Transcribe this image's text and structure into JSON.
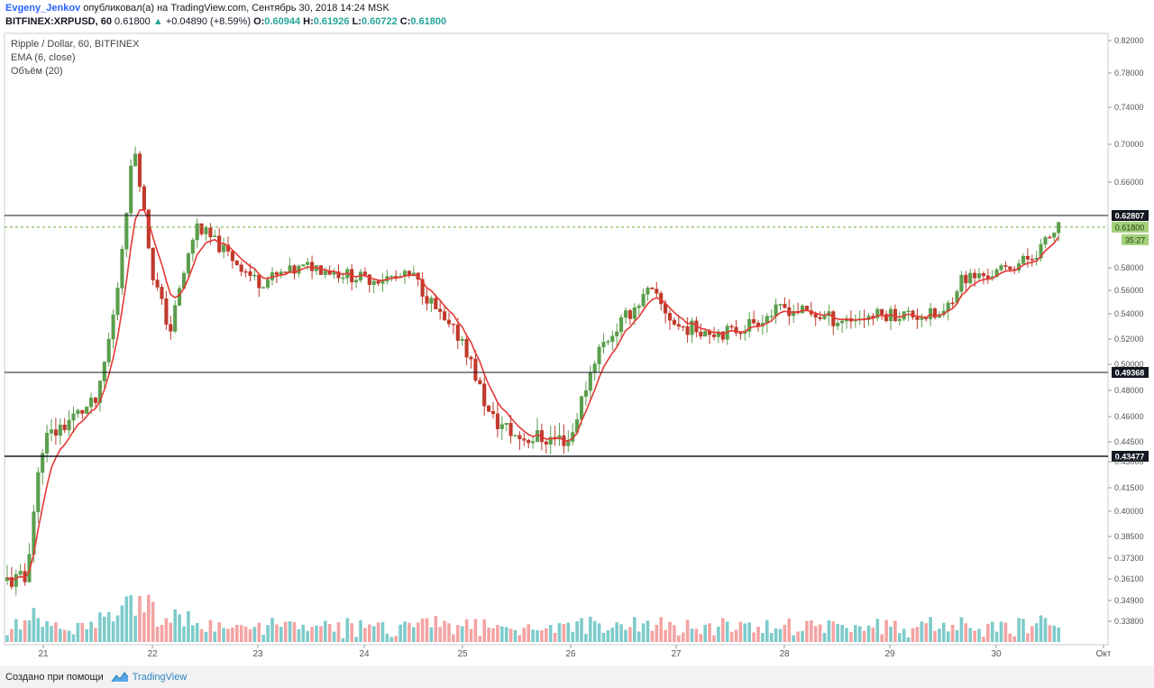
{
  "header": {
    "author": "Evgeny_Jenkov",
    "published_text": "опубликовал(а) на TradingView.com, Сентябрь 30, 2018 14:24 MSK",
    "symbol": "BITFINEX:XRPUSD, 60",
    "last": "0.61800",
    "change": "+0.04890 (+8.59%)",
    "o_label": "O:",
    "o_value": "0.60944",
    "h_label": "H:",
    "h_value": "0.61926",
    "l_label": "L:",
    "l_value": "0.60722",
    "c_label": "C:",
    "c_value": "0.61800"
  },
  "legend": {
    "title": "Ripple / Dollar, 60, BITFINEX",
    "ema": "EMA (6, close)",
    "volume": "Объём (20)"
  },
  "footer": {
    "created_with": "Создано при помощи",
    "brand": "TradingView"
  },
  "colors": {
    "up": "#5b9e4d",
    "down": "#c0392b",
    "ema": "#e53935",
    "vol_up": "#7ecbcb",
    "vol_down": "#f4a3a3",
    "level_line": "#131722",
    "last_price_line": "#6aaa3a"
  },
  "chart_data": {
    "type": "candlestick",
    "y_axis_ticks": [
      "0.82000",
      "0.78000",
      "0.74000",
      "0.70000",
      "0.66000",
      "0.58000",
      "0.56000",
      "0.54000",
      "0.52000",
      "0.50000",
      "0.48000",
      "0.46000",
      "0.44500",
      "0.43000",
      "0.41500",
      "0.40000",
      "0.38500",
      "0.37300",
      "0.36100",
      "0.34900",
      "0.33800"
    ],
    "x_axis_ticks": [
      "21",
      "22",
      "23",
      "24",
      "25",
      "26",
      "27",
      "28",
      "29",
      "30",
      "Окт"
    ],
    "horizontal_levels": [
      "0.62807",
      "0.49368",
      "0.43477"
    ],
    "last_price_label": "0.61800",
    "countdown_label": "35:27",
    "approx_path": [
      {
        "x": "Sep 20 20:00",
        "y": 0.36
      },
      {
        "x": "Sep 21 00:00",
        "y": 0.445
      },
      {
        "x": "Sep 21 12:00",
        "y": 0.472
      },
      {
        "x": "Sep 21 16:00",
        "y": 0.55
      },
      {
        "x": "Sep 21 20:00",
        "y": 0.7
      },
      {
        "x": "Sep 22 00:00",
        "y": 0.575
      },
      {
        "x": "Sep 22 04:00",
        "y": 0.525
      },
      {
        "x": "Sep 22 10:00",
        "y": 0.62
      },
      {
        "x": "Sep 23 00:00",
        "y": 0.567
      },
      {
        "x": "Sep 23 12:00",
        "y": 0.582
      },
      {
        "x": "Sep 24 00:00",
        "y": 0.57
      },
      {
        "x": "Sep 24 12:00",
        "y": 0.572
      },
      {
        "x": "Sep 24 20:00",
        "y": 0.53
      },
      {
        "x": "Sep 25 00:00",
        "y": 0.52
      },
      {
        "x": "Sep 25 06:00",
        "y": 0.46
      },
      {
        "x": "Sep 25 12:00",
        "y": 0.448
      },
      {
        "x": "Sep 26 00:00",
        "y": 0.446
      },
      {
        "x": "Sep 26 06:00",
        "y": 0.51
      },
      {
        "x": "Sep 26 12:00",
        "y": 0.535
      },
      {
        "x": "Sep 26 18:00",
        "y": 0.56
      },
      {
        "x": "Sep 27 00:00",
        "y": 0.53
      },
      {
        "x": "Sep 27 12:00",
        "y": 0.525
      },
      {
        "x": "Sep 28 00:00",
        "y": 0.545
      },
      {
        "x": "Sep 28 12:00",
        "y": 0.535
      },
      {
        "x": "Sep 29 00:00",
        "y": 0.54
      },
      {
        "x": "Sep 29 12:00",
        "y": 0.538
      },
      {
        "x": "Sep 29 16:00",
        "y": 0.57
      },
      {
        "x": "Sep 30 00:00",
        "y": 0.575
      },
      {
        "x": "Sep 30 08:00",
        "y": 0.59
      },
      {
        "x": "Sep 30 14:00",
        "y": 0.618
      }
    ]
  }
}
